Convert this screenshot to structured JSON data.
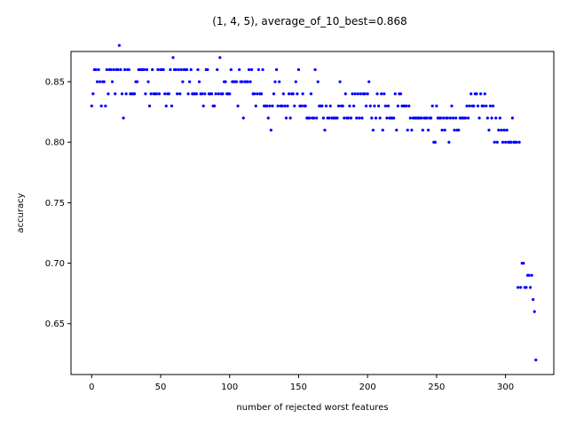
{
  "chart_data": {
    "type": "scatter",
    "title": "(1, 4, 5), average_of_10_best=0.868",
    "xlabel": "number of rejected worst features",
    "ylabel": "accuracy",
    "xlim": [
      -15,
      335
    ],
    "ylim": [
      0.608,
      0.875
    ],
    "xticks": [
      0,
      50,
      100,
      150,
      200,
      250,
      300
    ],
    "yticks": [
      0.65,
      0.7,
      0.75,
      0.8,
      0.85
    ],
    "grid": false,
    "marker_color": "#0000ff",
    "x_start": 0,
    "y": [
      0.83,
      0.84,
      0.86,
      0.86,
      0.85,
      0.86,
      0.85,
      0.83,
      0.85,
      0.85,
      0.83,
      0.86,
      0.84,
      0.86,
      0.86,
      0.85,
      0.86,
      0.84,
      0.86,
      0.86,
      0.88,
      0.86,
      0.84,
      0.82,
      0.86,
      0.84,
      0.86,
      0.86,
      0.84,
      0.84,
      0.84,
      0.84,
      0.85,
      0.85,
      0.86,
      0.86,
      0.86,
      0.86,
      0.86,
      0.84,
      0.86,
      0.85,
      0.83,
      0.84,
      0.86,
      0.84,
      0.84,
      0.84,
      0.86,
      0.84,
      0.86,
      0.86,
      0.86,
      0.84,
      0.83,
      0.84,
      0.84,
      0.86,
      0.83,
      0.87,
      0.86,
      0.86,
      0.84,
      0.86,
      0.84,
      0.86,
      0.85,
      0.86,
      0.86,
      0.86,
      0.84,
      0.85,
      0.86,
      0.84,
      0.84,
      0.84,
      0.84,
      0.86,
      0.85,
      0.84,
      0.84,
      0.83,
      0.84,
      0.86,
      0.86,
      0.84,
      0.84,
      0.84,
      0.83,
      0.83,
      0.84,
      0.86,
      0.84,
      0.87,
      0.84,
      0.84,
      0.85,
      0.85,
      0.84,
      0.84,
      0.84,
      0.86,
      0.85,
      0.85,
      0.85,
      0.85,
      0.83,
      0.86,
      0.85,
      0.85,
      0.82,
      0.85,
      0.85,
      0.85,
      0.86,
      0.85,
      0.86,
      0.84,
      0.84,
      0.83,
      0.84,
      0.86,
      0.84,
      0.84,
      0.86,
      0.83,
      0.83,
      0.83,
      0.82,
      0.83,
      0.81,
      0.83,
      0.84,
      0.85,
      0.86,
      0.83,
      0.85,
      0.83,
      0.83,
      0.84,
      0.83,
      0.82,
      0.83,
      0.84,
      0.82,
      0.84,
      0.84,
      0.83,
      0.85,
      0.84,
      0.86,
      0.83,
      0.83,
      0.84,
      0.83,
      0.83,
      0.82,
      0.82,
      0.82,
      0.84,
      0.82,
      0.82,
      0.86,
      0.82,
      0.85,
      0.83,
      0.83,
      0.83,
      0.82,
      0.81,
      0.83,
      0.82,
      0.82,
      0.83,
      0.82,
      0.82,
      0.82,
      0.82,
      0.82,
      0.83,
      0.85,
      0.83,
      0.83,
      0.82,
      0.84,
      0.82,
      0.82,
      0.83,
      0.82,
      0.84,
      0.83,
      0.84,
      0.82,
      0.84,
      0.82,
      0.84,
      0.82,
      0.84,
      0.84,
      0.83,
      0.84,
      0.85,
      0.83,
      0.82,
      0.81,
      0.83,
      0.82,
      0.84,
      0.83,
      0.82,
      0.84,
      0.81,
      0.84,
      0.83,
      0.82,
      0.83,
      0.82,
      0.82,
      0.82,
      0.82,
      0.84,
      0.81,
      0.83,
      0.84,
      0.84,
      0.83,
      0.83,
      0.83,
      0.83,
      0.81,
      0.83,
      0.82,
      0.81,
      0.82,
      0.82,
      0.82,
      0.82,
      0.82,
      0.82,
      0.82,
      0.81,
      0.82,
      0.82,
      0.82,
      0.81,
      0.82,
      0.82,
      0.83,
      0.8,
      0.8,
      0.83,
      0.82,
      0.82,
      0.82,
      0.81,
      0.82,
      0.81,
      0.82,
      0.82,
      0.8,
      0.82,
      0.83,
      0.82,
      0.81,
      0.82,
      0.81,
      0.81,
      0.82,
      0.82,
      0.82,
      0.82,
      0.82,
      0.83,
      0.82,
      0.83,
      0.84,
      0.83,
      0.83,
      0.84,
      0.84,
      0.83,
      0.82,
      0.84,
      0.83,
      0.83,
      0.84,
      0.83,
      0.82,
      0.81,
      0.83,
      0.82,
      0.83,
      0.8,
      0.82,
      0.8,
      0.81,
      0.82,
      0.81,
      0.8,
      0.81,
      0.8,
      0.81,
      0.8,
      0.8,
      0.8,
      0.82,
      0.8,
      0.8,
      0.8,
      0.68,
      0.8,
      0.68,
      0.7,
      0.7,
      0.68,
      0.68,
      0.69,
      0.69,
      0.68,
      0.69,
      0.67,
      0.66,
      0.62
    ]
  }
}
